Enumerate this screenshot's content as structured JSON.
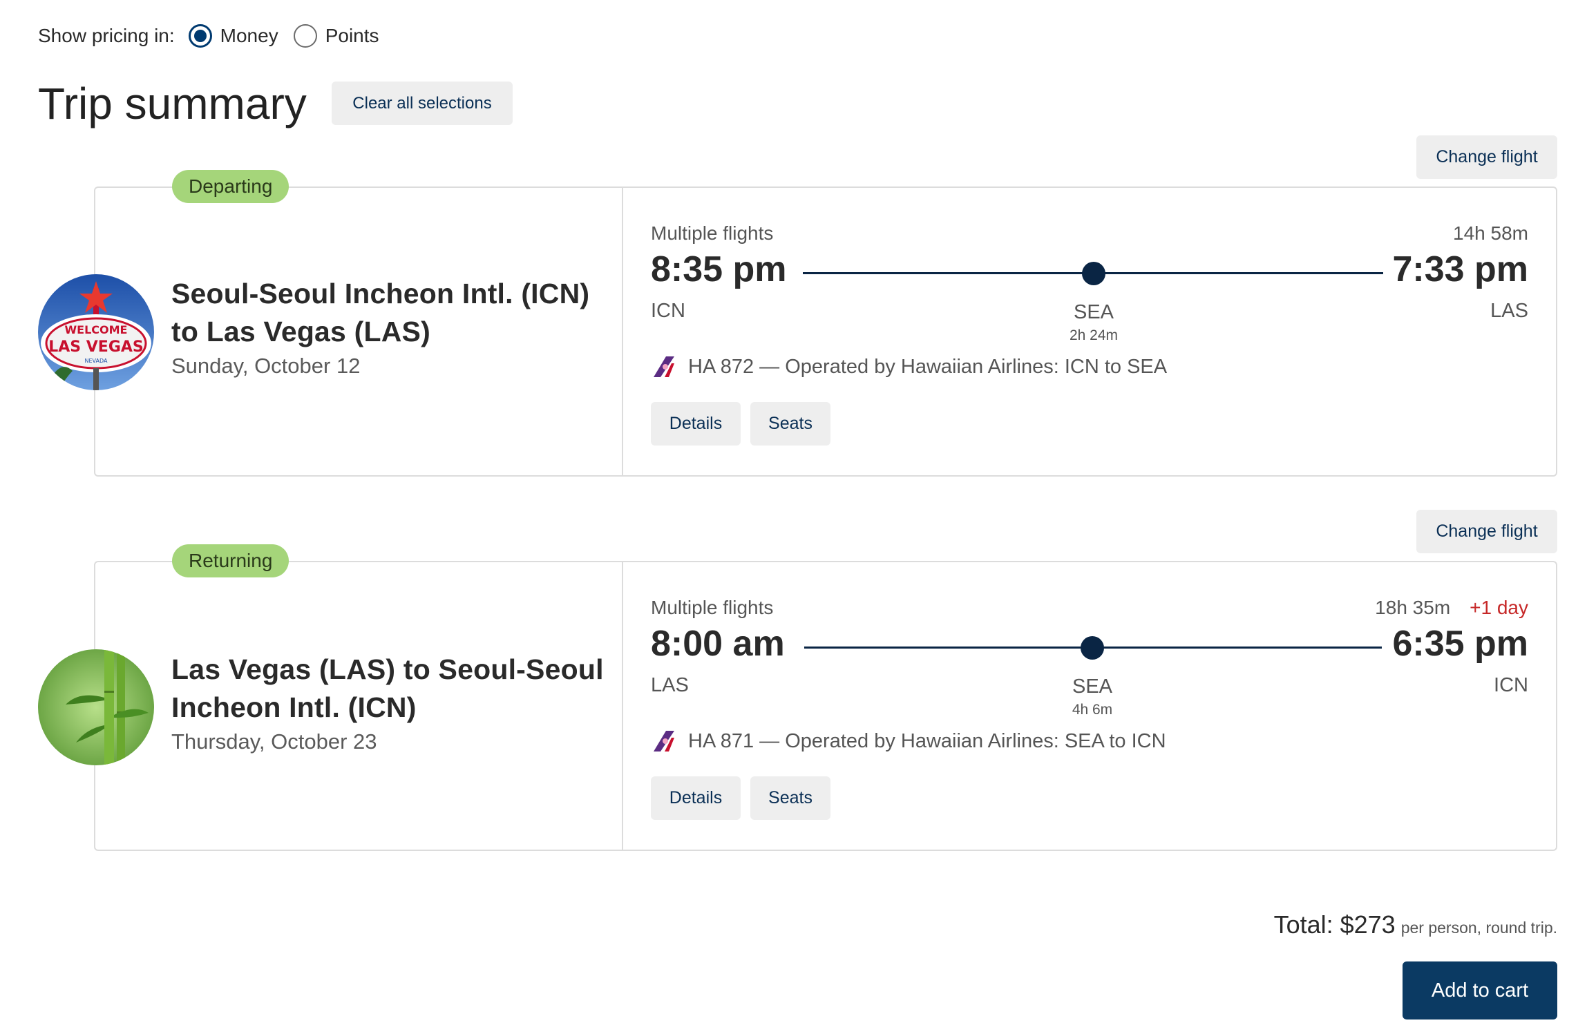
{
  "pricing": {
    "label": "Show pricing in:",
    "options": [
      {
        "label": "Money",
        "checked": true
      },
      {
        "label": "Points",
        "checked": false
      }
    ]
  },
  "summary": {
    "title": "Trip summary",
    "clear_label": "Clear all selections"
  },
  "departing": {
    "badge": "Departing",
    "change_label": "Change flight",
    "route_title": "Seoul-Seoul Incheon Intl. (ICN) to Las Vegas (LAS)",
    "date": "Sunday, October 12",
    "multiple_label": "Multiple flights",
    "duration": "14h 58m",
    "dep_time": "8:35 pm",
    "arr_time": "7:33 pm",
    "dep_code": "ICN",
    "arr_code": "LAS",
    "stop_code": "SEA",
    "layover": "2h 24m",
    "operated": "HA 872 — Operated by Hawaiian Airlines: ICN to SEA",
    "details_label": "Details",
    "seats_label": "Seats",
    "image_icon": "las-vegas-sign-image"
  },
  "returning": {
    "badge": "Returning",
    "change_label": "Change flight",
    "route_title": "Las Vegas (LAS) to Seoul-Seoul Incheon Intl. (ICN)",
    "date": "Thursday, October 23",
    "multiple_label": "Multiple flights",
    "duration": "18h 35m",
    "plus_day": "+1 day",
    "dep_time": "8:00 am",
    "arr_time": "6:35 pm",
    "dep_code": "LAS",
    "arr_code": "ICN",
    "stop_code": "SEA",
    "layover": "4h 6m",
    "operated": "HA 871 — Operated by Hawaiian Airlines: SEA to ICN",
    "details_label": "Details",
    "seats_label": "Seats",
    "image_icon": "bamboo-image"
  },
  "total": {
    "amount": "Total: $273",
    "sub": "per person, round trip."
  },
  "cart_label": "Add to cart",
  "colors": {
    "accent": "#003a70",
    "badge": "#a5d57a",
    "plus_day": "#c62828",
    "button_bg": "#eeeeee",
    "cart_bg": "#0b3a63"
  }
}
